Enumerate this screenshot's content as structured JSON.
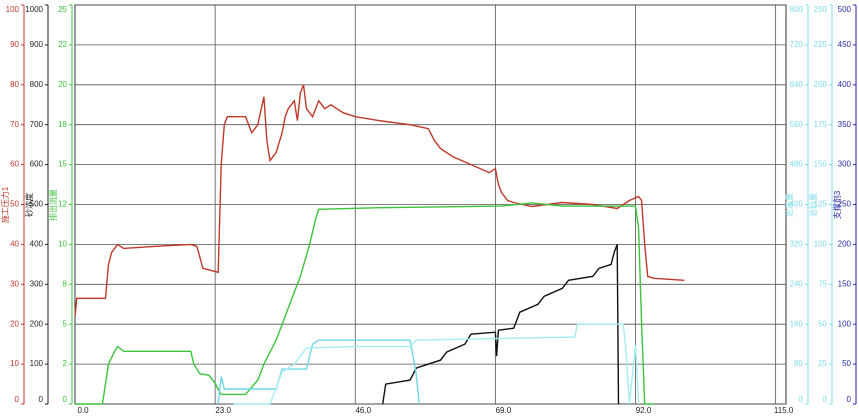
{
  "chart_data": {
    "type": "line",
    "grid": true,
    "xlim": [
      0,
      116.7
    ],
    "xticks": [
      {
        "value": 0,
        "label": "0.0"
      },
      {
        "value": 23,
        "label": "23.0"
      },
      {
        "value": 46,
        "label": "46.0"
      },
      {
        "value": 69,
        "label": "69.0"
      },
      {
        "value": 92,
        "label": "92.0"
      },
      {
        "value": 115,
        "label": "115.0"
      }
    ],
    "axes": [
      {
        "title": "施工压力1",
        "color": "#c0392b",
        "side": "left",
        "ylim": [
          0,
          100
        ],
        "yticks": [
          0,
          10,
          20,
          30,
          40,
          50,
          60,
          70,
          80,
          90,
          100
        ]
      },
      {
        "title": "砂浓度",
        "color": "#222222",
        "side": "left",
        "ylim": [
          0,
          1000
        ],
        "yticks": [
          0,
          100,
          200,
          300,
          400,
          500,
          600,
          700,
          800,
          900,
          1000
        ]
      },
      {
        "title": "排出流量",
        "color": "#3cc43c",
        "side": "left",
        "ylim": [
          0,
          25
        ],
        "yticks": [
          0,
          {
            "value": 2.5,
            "label": "2"
          },
          5,
          {
            "value": 7.5,
            "label": "8"
          },
          10,
          {
            "value": 12.5,
            "label": "12"
          },
          15,
          {
            "value": 17.5,
            "label": "18"
          },
          20,
          {
            "value": 22.5,
            "label": "22"
          },
          25
        ]
      },
      {
        "title": "总液量",
        "color": "#7fdde8",
        "side": "right",
        "ylim": [
          0,
          800
        ],
        "yticks": [
          0,
          80,
          160,
          240,
          320,
          400,
          480,
          560,
          640,
          720,
          800
        ]
      },
      {
        "title": "总砂量",
        "color": "#7fdde8",
        "side": "right",
        "ylim": [
          0,
          250
        ],
        "yticks": [
          0,
          25,
          50,
          75,
          100,
          125,
          150,
          175,
          200,
          225,
          250
        ]
      },
      {
        "title": "支撑剂3",
        "color": "#2a2aa8",
        "side": "right",
        "ylim": [
          0,
          500
        ],
        "yticks": [
          0,
          50,
          100,
          150,
          200,
          250,
          300,
          350,
          400,
          450,
          500
        ]
      }
    ],
    "series": [
      {
        "axis": 0,
        "color": "#c0392b",
        "x": [
          0,
          0.3,
          5,
          5.5,
          6,
          7,
          8,
          13,
          19,
          20,
          21,
          23.5,
          24,
          24.5,
          25,
          28,
          29,
          30,
          31,
          31.5,
          32,
          33,
          34,
          34.5,
          35,
          36,
          36.5,
          37,
          37.5,
          38,
          39,
          40,
          41,
          42,
          44,
          46,
          50,
          55,
          58,
          59,
          60,
          62,
          65,
          68,
          69,
          69.5,
          70,
          71,
          72,
          75,
          80,
          85,
          89,
          91,
          92.5,
          93,
          93.5,
          94,
          95,
          100
        ],
        "values": [
          22,
          26.5,
          26.5,
          35,
          38,
          40,
          39,
          39.5,
          40,
          39.5,
          34,
          33,
          60,
          70,
          72,
          72,
          68,
          70,
          77,
          66,
          61,
          63,
          68,
          72,
          74,
          76,
          71,
          78,
          80,
          74,
          72,
          76,
          74,
          75,
          73,
          72,
          71,
          70,
          69,
          66,
          64,
          62,
          60,
          58,
          59,
          55,
          53,
          51,
          50.5,
          49.5,
          50.5,
          50,
          49,
          51,
          52,
          51,
          40,
          32,
          31.5,
          31
        ]
      },
      {
        "axis": 2,
        "color": "#3cc43c",
        "x": [
          0,
          4.5,
          5.5,
          6.5,
          7,
          8,
          19,
          19.5,
          20.5,
          22,
          23,
          24,
          28,
          30,
          31,
          33,
          35,
          37,
          38.5,
          39.5,
          40,
          50,
          70,
          75,
          80,
          92,
          92.5,
          93,
          93.5,
          95
        ],
        "values": [
          0,
          0,
          2.5,
          3.3,
          3.6,
          3.3,
          3.3,
          2.5,
          1.9,
          1.8,
          1.3,
          0.6,
          0.6,
          1.5,
          2.5,
          4,
          6,
          8,
          10,
          11.6,
          12.2,
          12.3,
          12.4,
          12.6,
          12.4,
          12.4,
          11,
          5,
          0,
          0
        ]
      },
      {
        "axis": 1,
        "color": "#111111",
        "x": [
          50.5,
          51,
          55,
          56,
          60,
          61,
          64,
          65,
          69,
          69.2,
          69.5,
          72,
          73,
          76,
          77,
          80,
          81,
          85,
          86,
          88,
          88.5,
          89,
          89.2
        ],
        "values": [
          0,
          50,
          60,
          90,
          110,
          130,
          150,
          175,
          180,
          120,
          185,
          190,
          230,
          250,
          270,
          290,
          310,
          320,
          340,
          350,
          380,
          400,
          0
        ]
      },
      {
        "axis": 3,
        "color": "#6fd8e6",
        "x": [
          23.5,
          24,
          24.5,
          33,
          34,
          38,
          39,
          40,
          55,
          56,
          56.5
        ],
        "values": [
          0,
          55,
          30,
          30,
          70,
          70,
          120,
          128,
          128,
          60,
          0
        ]
      },
      {
        "axis": 4,
        "color": "#a8ecf2",
        "x": [
          26,
          32,
          33,
          34,
          36,
          38,
          46,
          55,
          56,
          82,
          82.5,
          90,
          90.5,
          91,
          92,
          92.5
        ],
        "values": [
          0,
          0,
          10,
          20,
          25,
          35,
          36,
          36,
          40,
          42,
          50,
          50,
          30,
          0,
          37,
          0
        ]
      }
    ]
  }
}
